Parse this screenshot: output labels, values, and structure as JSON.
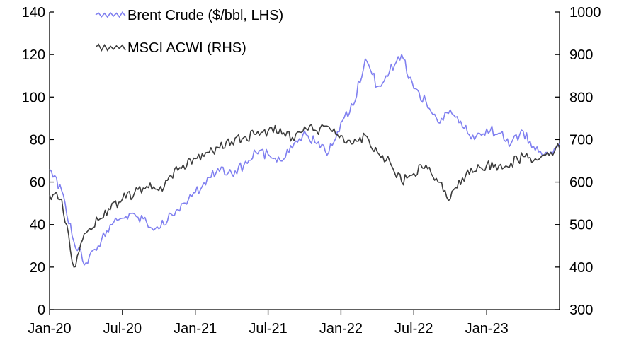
{
  "chart_data": {
    "type": "line",
    "title": "",
    "xlabel": "",
    "ylabel_left": "",
    "ylabel_right": "",
    "x_ticks": [
      "Jan-20",
      "Jul-20",
      "Jan-21",
      "Jul-21",
      "Jan-22",
      "Jul-22",
      "Jan-23"
    ],
    "x_range": [
      "2020-01",
      "2023-07"
    ],
    "y_left": {
      "ticks": [
        0,
        20,
        40,
        60,
        80,
        100,
        120,
        140
      ],
      "range": [
        0,
        140
      ]
    },
    "y_right": {
      "ticks": [
        300,
        400,
        500,
        600,
        700,
        800,
        900,
        1000
      ],
      "range": [
        300,
        1000
      ]
    },
    "grid": false,
    "legend_position": "top-left",
    "colors": {
      "brent": "#8080f0",
      "acwi": "#3c3c3c",
      "axis": "#000000"
    },
    "series": [
      {
        "name": "Brent Crude ($/bbl, LHS)",
        "axis": "left",
        "x": [
          "2020-01",
          "2020-02",
          "2020-03",
          "2020-04",
          "2020-05",
          "2020-06",
          "2020-07",
          "2020-08",
          "2020-09",
          "2020-10",
          "2020-11",
          "2020-12",
          "2021-01",
          "2021-02",
          "2021-03",
          "2021-04",
          "2021-05",
          "2021-06",
          "2021-07",
          "2021-08",
          "2021-09",
          "2021-10",
          "2021-11",
          "2021-12",
          "2022-01",
          "2022-02",
          "2022-03",
          "2022-04",
          "2022-05",
          "2022-06",
          "2022-07",
          "2022-08",
          "2022-09",
          "2022-10",
          "2022-11",
          "2022-12",
          "2023-01",
          "2023-02",
          "2023-03",
          "2023-04",
          "2023-05",
          "2023-06",
          "2023-07"
        ],
        "values": [
          66,
          56,
          32,
          22,
          30,
          40,
          43,
          45,
          41,
          38,
          45,
          50,
          55,
          62,
          65,
          64,
          68,
          74,
          73,
          70,
          76,
          84,
          78,
          74,
          88,
          96,
          118,
          105,
          112,
          120,
          104,
          98,
          88,
          94,
          86,
          80,
          85,
          83,
          78,
          84,
          75,
          74,
          78
        ]
      },
      {
        "name": "MSCI ACWI (RHS)",
        "axis": "right",
        "x": [
          "2020-01",
          "2020-02",
          "2020-03",
          "2020-04",
          "2020-05",
          "2020-06",
          "2020-07",
          "2020-08",
          "2020-09",
          "2020-10",
          "2020-11",
          "2020-12",
          "2021-01",
          "2021-02",
          "2021-03",
          "2021-04",
          "2021-05",
          "2021-06",
          "2021-07",
          "2021-08",
          "2021-09",
          "2021-10",
          "2021-11",
          "2021-12",
          "2022-01",
          "2022-02",
          "2022-03",
          "2022-04",
          "2022-05",
          "2022-06",
          "2022-07",
          "2022-08",
          "2022-09",
          "2022-10",
          "2022-11",
          "2022-12",
          "2023-01",
          "2023-02",
          "2023-03",
          "2023-04",
          "2023-05",
          "2023-06",
          "2023-07"
        ],
        "values": [
          570,
          560,
          400,
          480,
          510,
          535,
          560,
          575,
          590,
          580,
          615,
          640,
          655,
          670,
          680,
          695,
          705,
          712,
          720,
          726,
          705,
          730,
          720,
          730,
          710,
          690,
          710,
          670,
          650,
          600,
          620,
          640,
          600,
          560,
          610,
          625,
          640,
          638,
          645,
          660,
          655,
          670,
          680
        ]
      }
    ]
  }
}
